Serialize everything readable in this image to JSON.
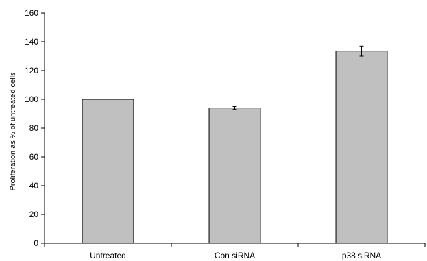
{
  "chart_data": {
    "type": "bar",
    "title": "",
    "xlabel": "",
    "ylabel": "Proliferation as % of untreated cells",
    "ylim": [
      0,
      160
    ],
    "yticks": [
      0,
      20,
      40,
      60,
      80,
      100,
      120,
      140,
      160
    ],
    "grid": false,
    "legend": "none",
    "categories": [
      "Untreated",
      "Con siRNA",
      "p38 siRNA"
    ],
    "values": [
      100,
      94,
      133.5
    ],
    "errors": [
      0,
      1,
      3.5
    ],
    "bar_color": "#c0c0c0"
  }
}
